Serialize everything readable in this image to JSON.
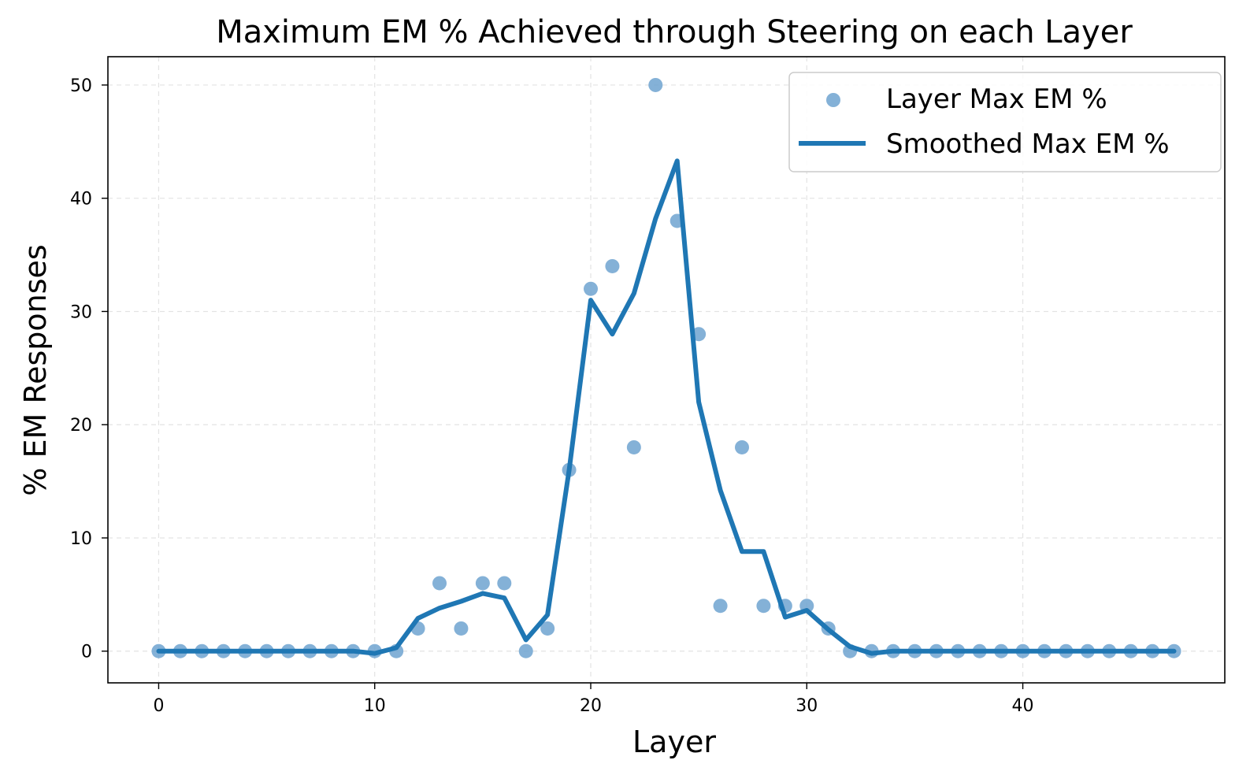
{
  "chart_data": {
    "type": "scatter",
    "title": "Maximum EM % Achieved through Steering on each Layer",
    "xlabel": "Layer",
    "ylabel": "% EM Responses",
    "xlim": [
      -2.35,
      49.35
    ],
    "ylim": [
      -2.8,
      52.5
    ],
    "xticks": [
      0,
      10,
      20,
      30,
      40
    ],
    "yticks": [
      0,
      10,
      20,
      30,
      40,
      50
    ],
    "grid": true,
    "legend_position": "top-right",
    "series": [
      {
        "name": "Layer Max EM %",
        "kind": "scatter",
        "color": "#6fa3d0",
        "x": [
          0,
          1,
          2,
          3,
          4,
          5,
          6,
          7,
          8,
          9,
          10,
          11,
          12,
          13,
          14,
          15,
          16,
          17,
          18,
          19,
          20,
          21,
          22,
          23,
          24,
          25,
          26,
          27,
          28,
          29,
          30,
          31,
          32,
          33,
          34,
          35,
          36,
          37,
          38,
          39,
          40,
          41,
          42,
          43,
          44,
          45,
          46,
          47
        ],
        "values": [
          0,
          0,
          0,
          0,
          0,
          0,
          0,
          0,
          0,
          0,
          0,
          0,
          2,
          6,
          2,
          6,
          6,
          0,
          2,
          16,
          32,
          34,
          18,
          50,
          38,
          28,
          4,
          18,
          4,
          4,
          4,
          2,
          0,
          0,
          0,
          0,
          0,
          0,
          0,
          0,
          0,
          0,
          0,
          0,
          0,
          0,
          0,
          0
        ]
      },
      {
        "name": "Smoothed Max EM %",
        "kind": "line",
        "color": "#1f77b4",
        "x": [
          0,
          1,
          2,
          3,
          4,
          5,
          6,
          7,
          8,
          9,
          10,
          11,
          12,
          13,
          14,
          15,
          16,
          17,
          18,
          19,
          20,
          21,
          22,
          23,
          24,
          25,
          26,
          27,
          28,
          29,
          30,
          31,
          32,
          33,
          34,
          35,
          36,
          37,
          38,
          39,
          40,
          41,
          42,
          43,
          44,
          45,
          46,
          47
        ],
        "values": [
          0,
          0,
          0,
          0,
          0,
          0,
          0,
          0,
          0,
          0,
          -0.2,
          0.3,
          2.9,
          3.8,
          4.4,
          5.1,
          4.7,
          1.0,
          3.2,
          16.0,
          31.0,
          28.0,
          31.6,
          38.2,
          43.3,
          22.0,
          14.2,
          8.8,
          8.8,
          3.0,
          3.6,
          1.9,
          0.4,
          -0.2,
          0,
          0,
          0,
          0,
          0,
          0,
          0,
          0,
          0,
          0,
          0,
          0,
          0,
          0
        ]
      }
    ]
  }
}
